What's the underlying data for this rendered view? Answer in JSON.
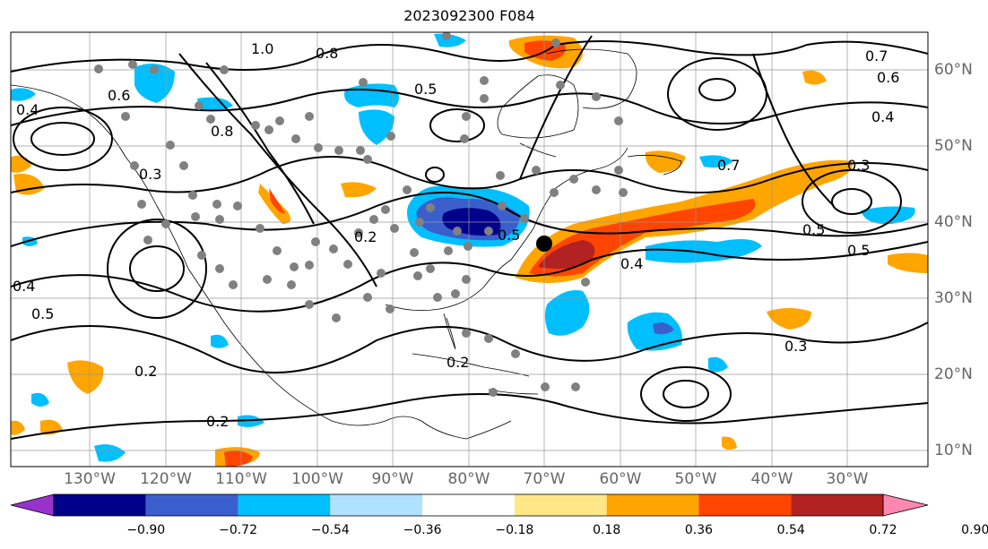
{
  "title": "2023092300 F084",
  "lon_labels": [
    "130°W",
    "120°W",
    "110°W",
    "100°W",
    "90°W",
    "80°W",
    "70°W",
    "60°W",
    "50°W",
    "40°W",
    "30°W"
  ],
  "lat_labels": [
    "60°N",
    "50°N",
    "40°N",
    "30°N",
    "20°N",
    "10°N"
  ],
  "colorbar": {
    "ticks": [
      "−0.90",
      "−0.72",
      "−0.54",
      "−0.36",
      "−0.18",
      "0.18",
      "0.36",
      "0.54",
      "0.72",
      "0.90"
    ],
    "colors": [
      "#9932CC",
      "#00008B",
      "#3A5FCD",
      "#00BFFF",
      "#B0E2FF",
      "#FFFFFF",
      "#FFE788",
      "#FFA500",
      "#FF4500",
      "#B22222",
      "#FF88B0"
    ]
  },
  "contour_labels": [
    "1.0",
    "0.8",
    "0.6",
    "0.4",
    "0.5",
    "0.3",
    "0.2",
    "0.7",
    "0.4",
    "0.5",
    "0.3",
    "0.5",
    "0.2",
    "0.5",
    "0.4",
    "0.3",
    "0.5",
    "0.4",
    "0.2",
    "0.6",
    "0.7",
    "0.8",
    "0.2"
  ],
  "colors": {
    "fill_orange": "#FFA500",
    "fill_red": "#FF4500",
    "fill_darkred": "#B22222",
    "fill_lightblue": "#00BFFF",
    "fill_blue": "#3A5FCD",
    "fill_navy": "#00008B",
    "station_gray": "#808080"
  }
}
